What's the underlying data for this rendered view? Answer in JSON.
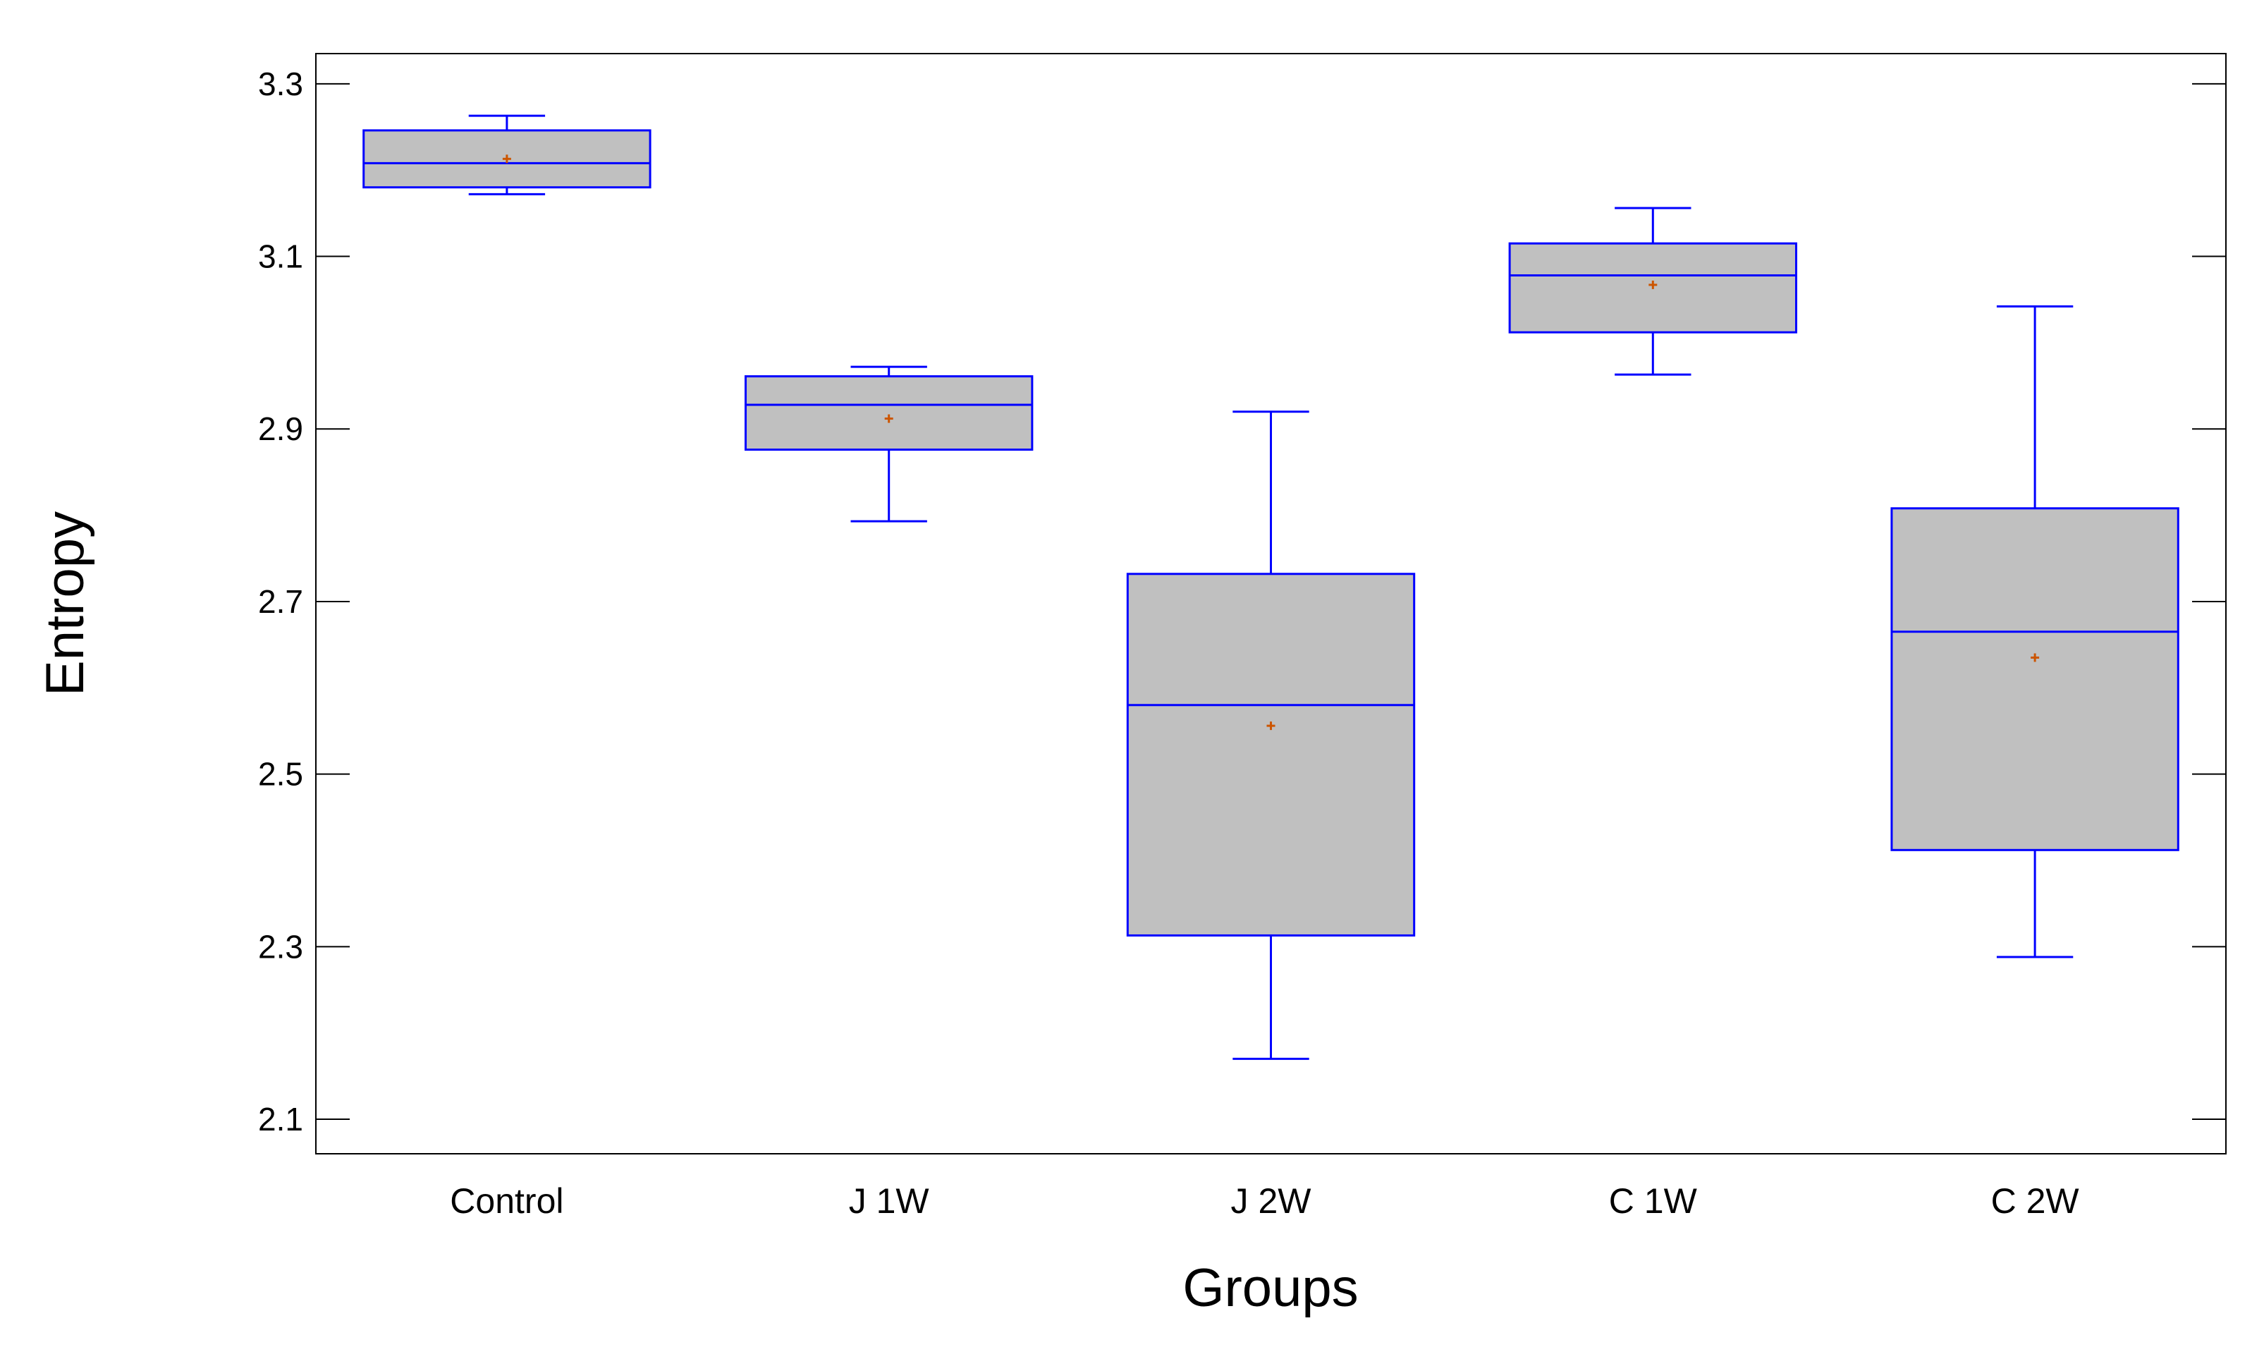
{
  "chart_data": {
    "type": "box",
    "title": "",
    "xlabel": "Groups",
    "ylabel": "Entropy",
    "ylim": [
      2.06,
      3.335
    ],
    "yticks": [
      2.1,
      2.3,
      2.5,
      2.7,
      2.9,
      3.1,
      3.3
    ],
    "ytick_labels": [
      "2.1",
      "2.3",
      "2.5",
      "2.7",
      "2.9",
      "3.1",
      "3.3"
    ],
    "grid": false,
    "legend": "none",
    "colors": {
      "box_fill": "#c0c0c0",
      "box_stroke": "#0000ff",
      "mean_marker": "#cc5500",
      "frame": "#000000"
    },
    "groups": [
      {
        "label": "Control",
        "min": 3.172,
        "q1": 3.18,
        "median": 3.208,
        "q3": 3.246,
        "max": 3.263,
        "mean": 3.213
      },
      {
        "label": "J 1W",
        "min": 2.793,
        "q1": 2.876,
        "median": 2.928,
        "q3": 2.961,
        "max": 2.972,
        "mean": 2.912
      },
      {
        "label": "J 2W",
        "min": 2.17,
        "q1": 2.313,
        "median": 2.58,
        "q3": 2.732,
        "max": 2.92,
        "mean": 2.556
      },
      {
        "label": "C 1W",
        "min": 2.963,
        "q1": 3.012,
        "median": 3.078,
        "q3": 3.115,
        "max": 3.156,
        "mean": 3.067
      },
      {
        "label": "C 2W",
        "min": 2.288,
        "q1": 2.412,
        "median": 2.665,
        "q3": 2.808,
        "max": 3.042,
        "mean": 2.635
      }
    ]
  }
}
